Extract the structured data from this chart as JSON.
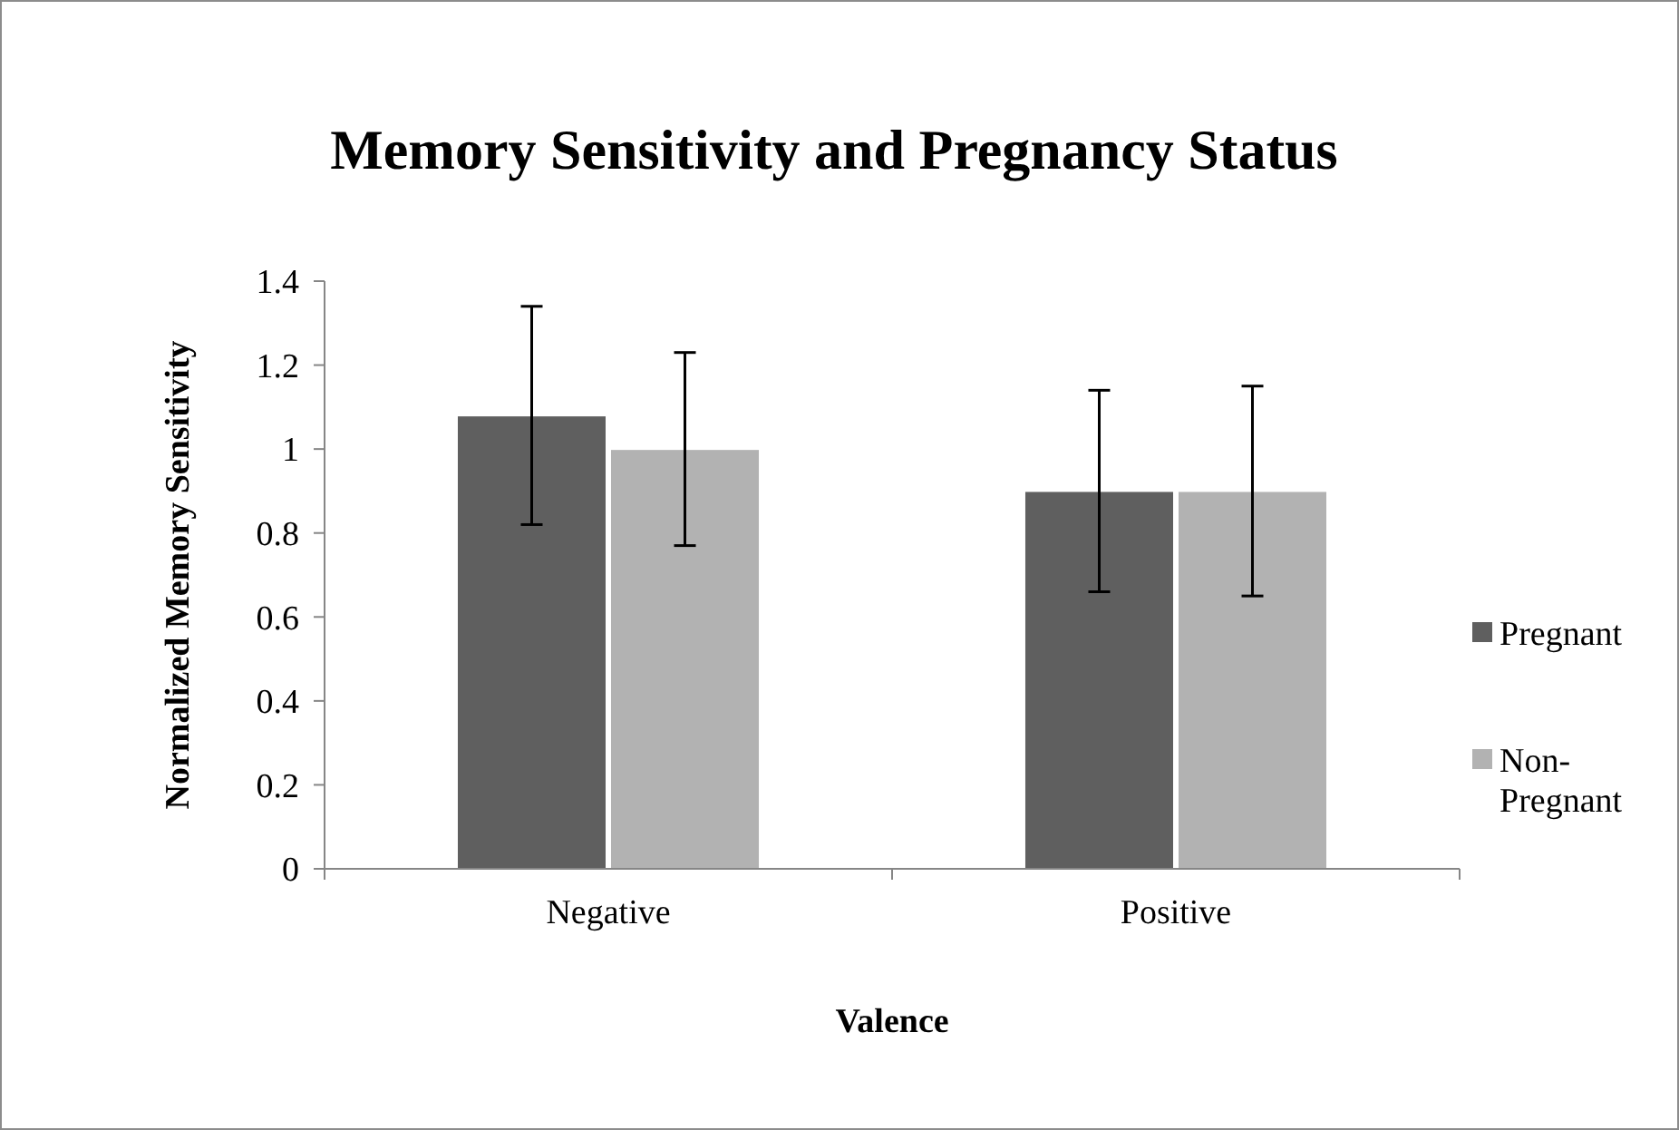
{
  "chart_data": {
    "type": "bar",
    "title": "Memory Sensitivity and Pregnancy Status",
    "xlabel": "Valence",
    "ylabel": "Normalized Memory Sensitivity",
    "categories": [
      "Negative",
      "Positive"
    ],
    "series": [
      {
        "name": "Pregnant",
        "color": "#5f5f5f",
        "values": [
          1.08,
          0.9
        ],
        "errors": [
          0.26,
          0.24
        ]
      },
      {
        "name": "Non-Pregnant",
        "color": "#b2b2b2",
        "values": [
          1.0,
          0.9
        ],
        "errors": [
          0.23,
          0.25
        ]
      }
    ],
    "ylim": [
      0,
      1.4
    ],
    "yticks": [
      0,
      0.2,
      0.4,
      0.6,
      0.8,
      1,
      1.2,
      1.4
    ],
    "grid": false,
    "legend": "right"
  }
}
